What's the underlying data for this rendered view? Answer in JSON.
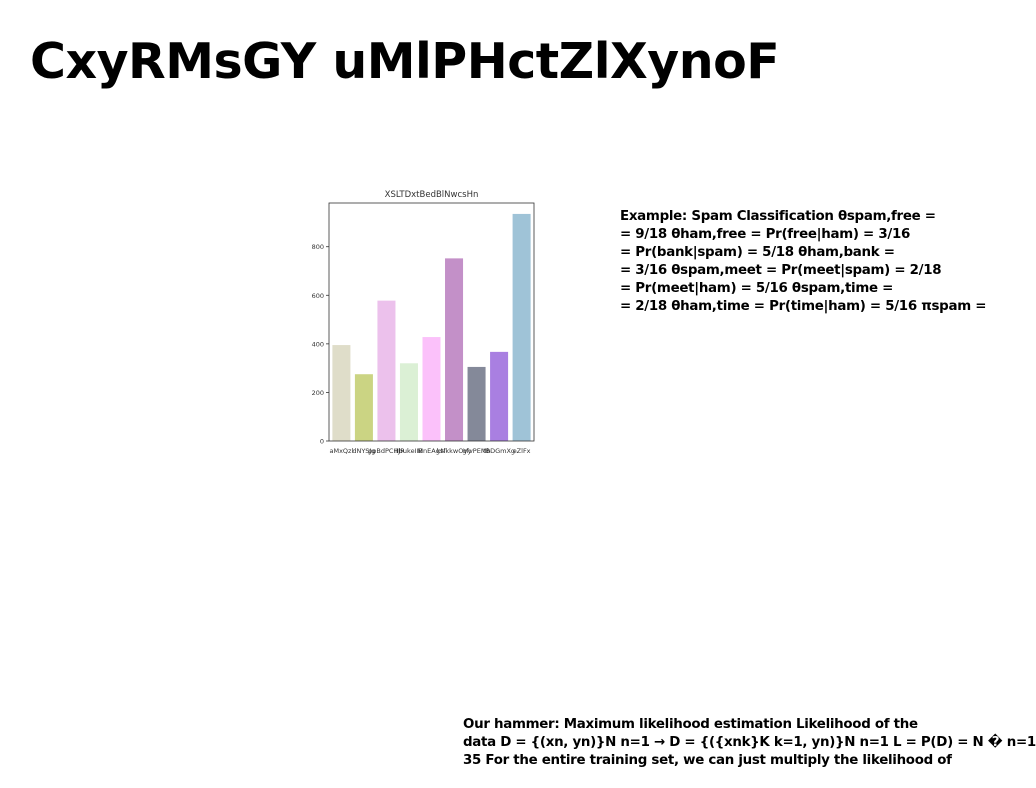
{
  "page": {
    "title": "CxyRMsGY uMlPHctZlXynoF"
  },
  "chart_data": {
    "type": "bar",
    "title": "XSLTDxtBedBlNwcsHn",
    "categories": [
      "aMxQzl",
      "dNYSJg",
      "ppBdPCHJR",
      "lIbukeIIB",
      "MnEAgsf",
      "kNkkwOVy",
      "gfvPEMb",
      "tBDGmXg",
      "eZlFx"
    ],
    "values": [
      395,
      275,
      578,
      320,
      428,
      752,
      305,
      367,
      935
    ],
    "colors": [
      "#dfddc9",
      "#cbd483",
      "#ecc1ec",
      "#dbf0d5",
      "#fbc1fa",
      "#c390c8",
      "#848999",
      "#a97fe1",
      "#9fc3d7"
    ],
    "yticks": [
      0,
      200,
      400,
      600,
      800
    ],
    "ylim": [
      0,
      980
    ],
    "xlabel": "",
    "ylabel": "",
    "grid": false
  },
  "text_blocks": {
    "spam_example": [
      "Example: Spam Classification θspam,free =",
      "= 9/18 θham,free = Pr(free|ham) = 3/16",
      "= Pr(bank|spam) = 5/18 θham,bank =",
      "= 3/16 θspam,meet = Pr(meet|spam) = 2/18",
      "= Pr(meet|ham) = 5/16 θspam,time =",
      "= 2/18 θham,time = Pr(time|ham) = 5/16 πspam ="
    ],
    "hammer": [
      "Our hammer: Maximum likelihood estimation Likelihood of the",
      "data D = {(xn, yn)}N n=1 → D = {({xnk}K k=1, yn)}N n=1 L = P(D) = N � n=1",
      "35 For the entire training set, we can just multiply the likelihood of"
    ]
  }
}
